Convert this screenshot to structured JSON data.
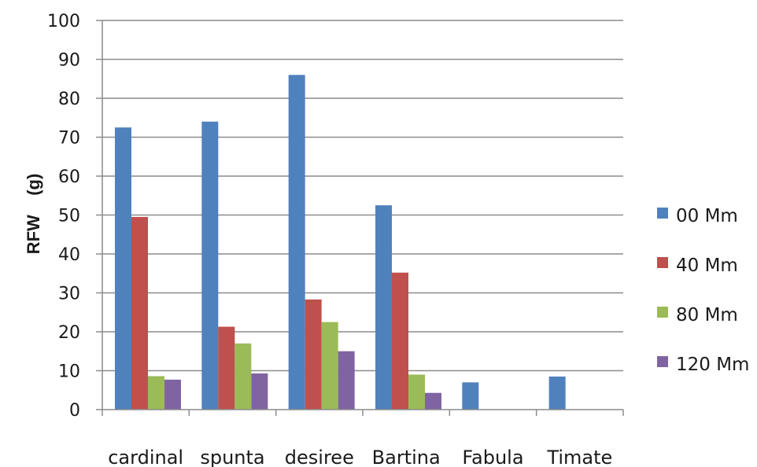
{
  "chart_data": {
    "type": "bar",
    "title": "",
    "xlabel": "",
    "ylabel": "RFW    (g)",
    "ylim": [
      0,
      100
    ],
    "yticks": [
      0,
      10,
      20,
      30,
      40,
      50,
      60,
      70,
      80,
      90,
      100
    ],
    "grid": "horizontal",
    "legend_position": "right",
    "categories": [
      "cardinal",
      "spunta",
      "desiree",
      "Bartina",
      "Fabula",
      "Timate"
    ],
    "series": [
      {
        "name": "00 Mm",
        "color": "#4f81bd",
        "values": [
          72.5,
          74,
          86,
          52.5,
          7,
          8.5
        ]
      },
      {
        "name": "40  Mm",
        "color": "#c0504d",
        "values": [
          49.5,
          21.3,
          28.3,
          35.2,
          0,
          0
        ]
      },
      {
        "name": "80  Mm",
        "color": "#9bbb59",
        "values": [
          8.6,
          17,
          22.5,
          9,
          0,
          0
        ]
      },
      {
        "name": "120 Mm",
        "color": "#8064a2",
        "values": [
          7.7,
          9.3,
          15,
          4.3,
          0,
          0
        ]
      }
    ]
  }
}
